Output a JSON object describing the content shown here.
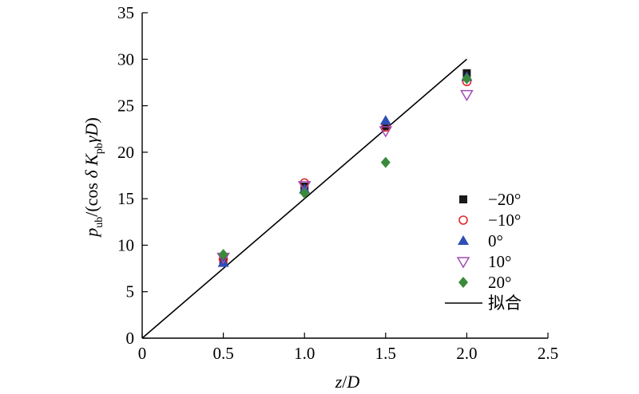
{
  "chart_data": {
    "type": "scatter",
    "title": "",
    "xlabel": "z/D",
    "ylabel": "p_ub/(cos δ K_pb γD)",
    "xlim": [
      0,
      2.5
    ],
    "ylim": [
      0,
      35
    ],
    "x_ticks": [
      "0",
      "0.5",
      "1.0",
      "1.5",
      "2.0",
      "2.5"
    ],
    "y_ticks": [
      "0",
      "5",
      "10",
      "15",
      "20",
      "25",
      "30",
      "35"
    ],
    "legend_position": "lower-right",
    "grid": false,
    "series": [
      {
        "name": "−20°",
        "marker": "square-filled",
        "color": "#1a1a1a",
        "x": [
          0.5,
          1.0,
          1.5,
          2.0
        ],
        "y": [
          8.3,
          16.3,
          22.8,
          28.5
        ]
      },
      {
        "name": "−10°",
        "marker": "circle-open",
        "color": "#e0262b",
        "x": [
          0.5,
          1.0,
          1.5,
          2.0
        ],
        "y": [
          8.5,
          16.7,
          22.7,
          27.6
        ]
      },
      {
        "name": "0°",
        "marker": "triangle-up-filled",
        "color": "#2e4fb5",
        "x": [
          0.5,
          1.0,
          1.5,
          2.0
        ],
        "y": [
          8.1,
          16.0,
          23.4,
          28.1
        ]
      },
      {
        "name": "10°",
        "marker": "triangle-down-open",
        "color": "#a24bb5",
        "x": [
          0.5,
          1.0,
          1.5,
          2.0
        ],
        "y": [
          8.7,
          16.4,
          22.3,
          26.2
        ]
      },
      {
        "name": "20°",
        "marker": "diamond-filled",
        "color": "#3a8a3a",
        "x": [
          0.5,
          1.0,
          1.5,
          2.0
        ],
        "y": [
          9.0,
          15.6,
          18.9,
          27.9
        ]
      }
    ],
    "fit_line": {
      "name": "拟合",
      "color": "#000000",
      "x": [
        0,
        2.0
      ],
      "y": [
        0,
        30
      ]
    }
  }
}
